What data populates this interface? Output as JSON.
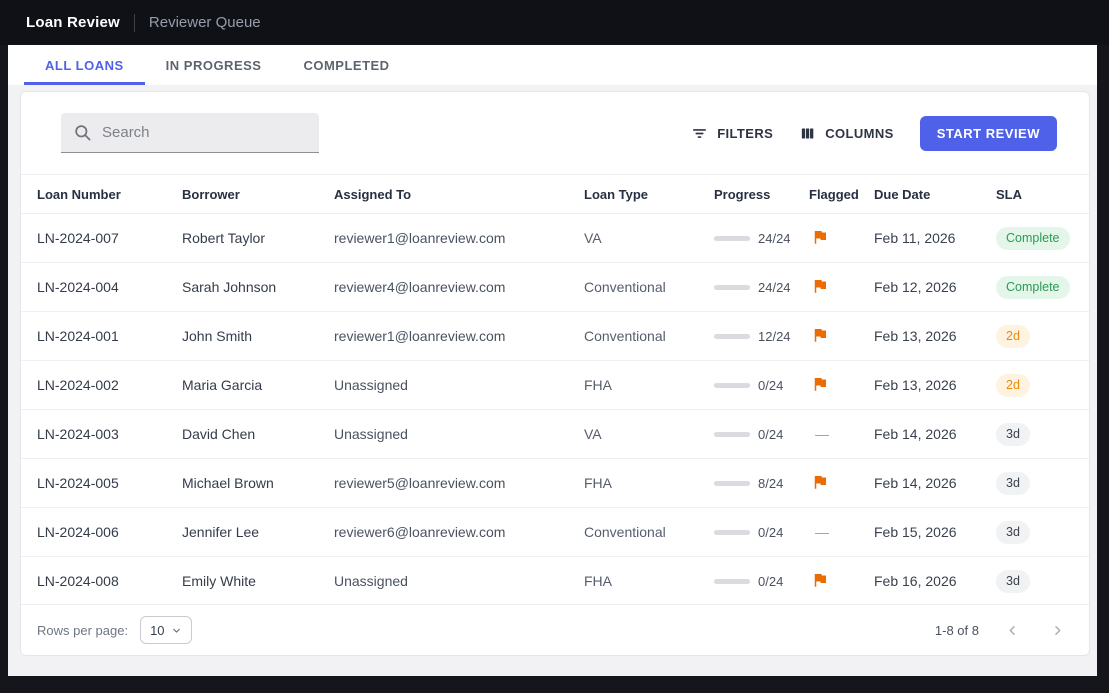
{
  "topbar": {
    "app_title": "Loan Review",
    "subtitle": "Reviewer Queue"
  },
  "tabs": [
    {
      "label": "ALL LOANS",
      "active": true
    },
    {
      "label": "IN PROGRESS",
      "active": false
    },
    {
      "label": "COMPLETED",
      "active": false
    }
  ],
  "toolbar": {
    "search_placeholder": "Search",
    "filters_label": "FILTERS",
    "columns_label": "COLUMNS",
    "start_review_label": "START REVIEW"
  },
  "colors": {
    "accent": "#4e61e8",
    "progress_complete": "#2fa863",
    "progress_partial": "#4e61e8",
    "flag_orange": "#ed6c02"
  },
  "table": {
    "columns": [
      "Loan Number",
      "Borrower",
      "Assigned To",
      "Loan Type",
      "Progress",
      "Flagged",
      "Due Date",
      "SLA"
    ],
    "rows": [
      {
        "loan_number": "LN-2024-007",
        "borrower": "Robert Taylor",
        "assigned_to": "reviewer1@loanreview.com",
        "loan_type": "VA",
        "progress_done": 24,
        "progress_total": 24,
        "flagged": true,
        "due_date": "Feb 11, 2026",
        "sla": "Complete",
        "sla_type": "complete"
      },
      {
        "loan_number": "LN-2024-004",
        "borrower": "Sarah Johnson",
        "assigned_to": "reviewer4@loanreview.com",
        "loan_type": "Conventional",
        "progress_done": 24,
        "progress_total": 24,
        "flagged": true,
        "due_date": "Feb 12, 2026",
        "sla": "Complete",
        "sla_type": "complete"
      },
      {
        "loan_number": "LN-2024-001",
        "borrower": "John Smith",
        "assigned_to": "reviewer1@loanreview.com",
        "loan_type": "Conventional",
        "progress_done": 12,
        "progress_total": 24,
        "flagged": true,
        "due_date": "Feb 13, 2026",
        "sla": "2d",
        "sla_type": "warn"
      },
      {
        "loan_number": "LN-2024-002",
        "borrower": "Maria Garcia",
        "assigned_to": "Unassigned",
        "loan_type": "FHA",
        "progress_done": 0,
        "progress_total": 24,
        "flagged": true,
        "due_date": "Feb 13, 2026",
        "sla": "2d",
        "sla_type": "warn"
      },
      {
        "loan_number": "LN-2024-003",
        "borrower": "David Chen",
        "assigned_to": "Unassigned",
        "loan_type": "VA",
        "progress_done": 0,
        "progress_total": 24,
        "flagged": false,
        "due_date": "Feb 14, 2026",
        "sla": "3d",
        "sla_type": "neutral"
      },
      {
        "loan_number": "LN-2024-005",
        "borrower": "Michael Brown",
        "assigned_to": "reviewer5@loanreview.com",
        "loan_type": "FHA",
        "progress_done": 8,
        "progress_total": 24,
        "flagged": true,
        "due_date": "Feb 14, 2026",
        "sla": "3d",
        "sla_type": "neutral"
      },
      {
        "loan_number": "LN-2024-006",
        "borrower": "Jennifer Lee",
        "assigned_to": "reviewer6@loanreview.com",
        "loan_type": "Conventional",
        "progress_done": 0,
        "progress_total": 24,
        "flagged": false,
        "due_date": "Feb 15, 2026",
        "sla": "3d",
        "sla_type": "neutral"
      },
      {
        "loan_number": "LN-2024-008",
        "borrower": "Emily White",
        "assigned_to": "Unassigned",
        "loan_type": "FHA",
        "progress_done": 0,
        "progress_total": 24,
        "flagged": true,
        "due_date": "Feb 16, 2026",
        "sla": "3d",
        "sla_type": "neutral"
      }
    ]
  },
  "footer": {
    "rows_per_page_label": "Rows per page:",
    "rows_per_page_value": "10",
    "range_label": "1-8 of 8"
  }
}
